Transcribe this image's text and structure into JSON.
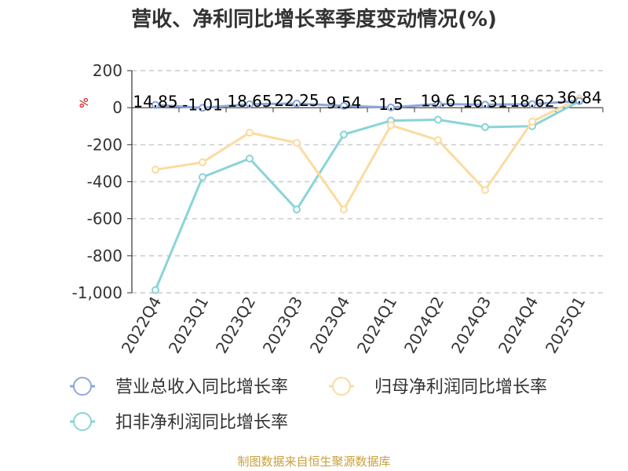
{
  "chart_data": {
    "type": "line",
    "title": "营收、净利同比增长率季度变动情况(%)",
    "ylabel": "%",
    "categories": [
      "2022Q4",
      "2023Q1",
      "2023Q2",
      "2023Q3",
      "2023Q4",
      "2024Q1",
      "2024Q2",
      "2024Q3",
      "2024Q4",
      "2025Q1"
    ],
    "ylim": [
      -1000,
      200
    ],
    "yticks": [
      200,
      0,
      -200,
      -400,
      -600,
      -800,
      -1000
    ],
    "ytick_labels": [
      "200",
      "0",
      "-200",
      "-400",
      "-600",
      "-800",
      "-1,000"
    ],
    "grid": true,
    "legend_position": "bottom",
    "series": [
      {
        "name": "营业总收入同比增长率",
        "color": "#8fa8d8",
        "values": [
          14.85,
          -1.01,
          18.65,
          22.25,
          9.54,
          1.5,
          19.6,
          16.31,
          18.62,
          36.84
        ],
        "labels": [
          "14.85",
          "-1.01",
          "18.65",
          "22.25",
          "9.54",
          "1.5",
          "19.6",
          "16.31",
          "18.62",
          "36.84"
        ]
      },
      {
        "name": "归母净利润同比增长率",
        "color": "#fbdb9e",
        "values": [
          -335,
          -295,
          -135,
          -190,
          -550,
          -95,
          -175,
          -445,
          -75,
          50
        ]
      },
      {
        "name": "扣非净利润同比增长率",
        "color": "#88d4d8",
        "values": [
          -985,
          -375,
          -275,
          -550,
          -145,
          -70,
          -65,
          -105,
          -100,
          35
        ]
      }
    ]
  },
  "source": "制图数据来自恒生聚源数据库"
}
